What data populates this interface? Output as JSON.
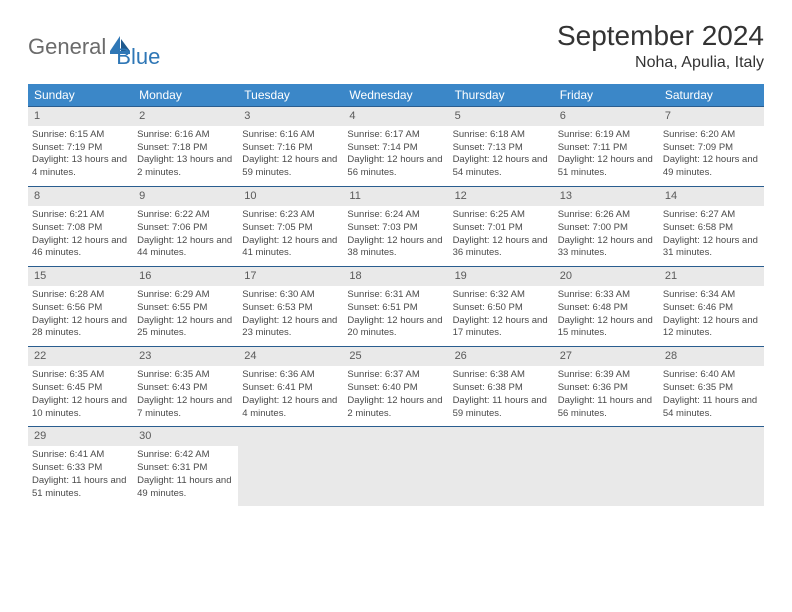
{
  "logo": {
    "part1": "General",
    "part2": "Blue"
  },
  "title": "September 2024",
  "location": "Noha, Apulia, Italy",
  "colors": {
    "header_bg": "#3b87c8",
    "header_text": "#ffffff",
    "daynum_bg": "#e9e9e9",
    "border": "#2a5d8f",
    "logo_gray": "#6b6b6b",
    "logo_blue": "#2f77b6"
  },
  "day_headers": [
    "Sunday",
    "Monday",
    "Tuesday",
    "Wednesday",
    "Thursday",
    "Friday",
    "Saturday"
  ],
  "weeks": [
    [
      {
        "n": "1",
        "sr": "Sunrise: 6:15 AM",
        "ss": "Sunset: 7:19 PM",
        "dl": "Daylight: 13 hours and 4 minutes."
      },
      {
        "n": "2",
        "sr": "Sunrise: 6:16 AM",
        "ss": "Sunset: 7:18 PM",
        "dl": "Daylight: 13 hours and 2 minutes."
      },
      {
        "n": "3",
        "sr": "Sunrise: 6:16 AM",
        "ss": "Sunset: 7:16 PM",
        "dl": "Daylight: 12 hours and 59 minutes."
      },
      {
        "n": "4",
        "sr": "Sunrise: 6:17 AM",
        "ss": "Sunset: 7:14 PM",
        "dl": "Daylight: 12 hours and 56 minutes."
      },
      {
        "n": "5",
        "sr": "Sunrise: 6:18 AM",
        "ss": "Sunset: 7:13 PM",
        "dl": "Daylight: 12 hours and 54 minutes."
      },
      {
        "n": "6",
        "sr": "Sunrise: 6:19 AM",
        "ss": "Sunset: 7:11 PM",
        "dl": "Daylight: 12 hours and 51 minutes."
      },
      {
        "n": "7",
        "sr": "Sunrise: 6:20 AM",
        "ss": "Sunset: 7:09 PM",
        "dl": "Daylight: 12 hours and 49 minutes."
      }
    ],
    [
      {
        "n": "8",
        "sr": "Sunrise: 6:21 AM",
        "ss": "Sunset: 7:08 PM",
        "dl": "Daylight: 12 hours and 46 minutes."
      },
      {
        "n": "9",
        "sr": "Sunrise: 6:22 AM",
        "ss": "Sunset: 7:06 PM",
        "dl": "Daylight: 12 hours and 44 minutes."
      },
      {
        "n": "10",
        "sr": "Sunrise: 6:23 AM",
        "ss": "Sunset: 7:05 PM",
        "dl": "Daylight: 12 hours and 41 minutes."
      },
      {
        "n": "11",
        "sr": "Sunrise: 6:24 AM",
        "ss": "Sunset: 7:03 PM",
        "dl": "Daylight: 12 hours and 38 minutes."
      },
      {
        "n": "12",
        "sr": "Sunrise: 6:25 AM",
        "ss": "Sunset: 7:01 PM",
        "dl": "Daylight: 12 hours and 36 minutes."
      },
      {
        "n": "13",
        "sr": "Sunrise: 6:26 AM",
        "ss": "Sunset: 7:00 PM",
        "dl": "Daylight: 12 hours and 33 minutes."
      },
      {
        "n": "14",
        "sr": "Sunrise: 6:27 AM",
        "ss": "Sunset: 6:58 PM",
        "dl": "Daylight: 12 hours and 31 minutes."
      }
    ],
    [
      {
        "n": "15",
        "sr": "Sunrise: 6:28 AM",
        "ss": "Sunset: 6:56 PM",
        "dl": "Daylight: 12 hours and 28 minutes."
      },
      {
        "n": "16",
        "sr": "Sunrise: 6:29 AM",
        "ss": "Sunset: 6:55 PM",
        "dl": "Daylight: 12 hours and 25 minutes."
      },
      {
        "n": "17",
        "sr": "Sunrise: 6:30 AM",
        "ss": "Sunset: 6:53 PM",
        "dl": "Daylight: 12 hours and 23 minutes."
      },
      {
        "n": "18",
        "sr": "Sunrise: 6:31 AM",
        "ss": "Sunset: 6:51 PM",
        "dl": "Daylight: 12 hours and 20 minutes."
      },
      {
        "n": "19",
        "sr": "Sunrise: 6:32 AM",
        "ss": "Sunset: 6:50 PM",
        "dl": "Daylight: 12 hours and 17 minutes."
      },
      {
        "n": "20",
        "sr": "Sunrise: 6:33 AM",
        "ss": "Sunset: 6:48 PM",
        "dl": "Daylight: 12 hours and 15 minutes."
      },
      {
        "n": "21",
        "sr": "Sunrise: 6:34 AM",
        "ss": "Sunset: 6:46 PM",
        "dl": "Daylight: 12 hours and 12 minutes."
      }
    ],
    [
      {
        "n": "22",
        "sr": "Sunrise: 6:35 AM",
        "ss": "Sunset: 6:45 PM",
        "dl": "Daylight: 12 hours and 10 minutes."
      },
      {
        "n": "23",
        "sr": "Sunrise: 6:35 AM",
        "ss": "Sunset: 6:43 PM",
        "dl": "Daylight: 12 hours and 7 minutes."
      },
      {
        "n": "24",
        "sr": "Sunrise: 6:36 AM",
        "ss": "Sunset: 6:41 PM",
        "dl": "Daylight: 12 hours and 4 minutes."
      },
      {
        "n": "25",
        "sr": "Sunrise: 6:37 AM",
        "ss": "Sunset: 6:40 PM",
        "dl": "Daylight: 12 hours and 2 minutes."
      },
      {
        "n": "26",
        "sr": "Sunrise: 6:38 AM",
        "ss": "Sunset: 6:38 PM",
        "dl": "Daylight: 11 hours and 59 minutes."
      },
      {
        "n": "27",
        "sr": "Sunrise: 6:39 AM",
        "ss": "Sunset: 6:36 PM",
        "dl": "Daylight: 11 hours and 56 minutes."
      },
      {
        "n": "28",
        "sr": "Sunrise: 6:40 AM",
        "ss": "Sunset: 6:35 PM",
        "dl": "Daylight: 11 hours and 54 minutes."
      }
    ],
    [
      {
        "n": "29",
        "sr": "Sunrise: 6:41 AM",
        "ss": "Sunset: 6:33 PM",
        "dl": "Daylight: 11 hours and 51 minutes."
      },
      {
        "n": "30",
        "sr": "Sunrise: 6:42 AM",
        "ss": "Sunset: 6:31 PM",
        "dl": "Daylight: 11 hours and 49 minutes."
      },
      null,
      null,
      null,
      null,
      null
    ]
  ]
}
